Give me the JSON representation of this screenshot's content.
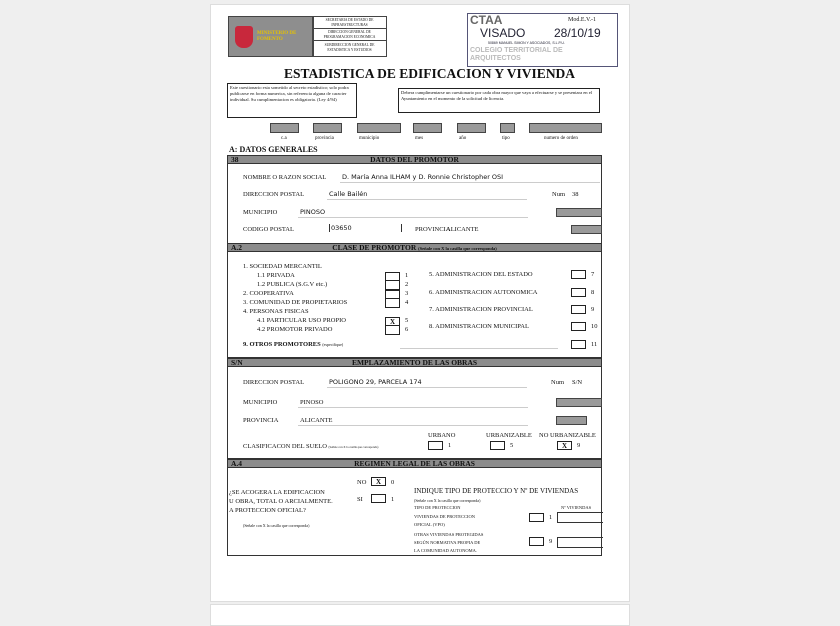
{
  "header": {
    "logo_text": "MINISTERIO DE FOMENTO",
    "ministry_lines": [
      "SECRETARIA DE ESTADO DE INFRAESTRUCTURAS",
      "DIRECCION GENERAL DE PROGRAMACION ECONOMICA",
      "SUBDIRECCION GENERAL DE ESTADISTICA Y ESTUDIOS"
    ],
    "stamp": {
      "brand": "CTAA",
      "bg_text": "COLEGIO TERRITORIAL DE ARQUITECTOS",
      "model": "Mod.E.V.-1",
      "visado": "VISADO",
      "date": "28/10/19",
      "firm": "50869 MANUEL SIMON Y ASOCIADOS, S.L.P.U."
    },
    "title": "ESTADISTICA DE EDIFICACION Y VIVIENDA",
    "note_left": "Este cuestionario esta sometido al secreto estadistico; solo podra publicarse en forma numerica, sin referencia alguna de caracter individual. Su cumplimentacion es obligatoria. (Ley 4/94)",
    "note_right": "Debera cumplimentarse un cuestionario por cada obra mayor que vaya a efectuarse y se presentara en el Ayuntamiento en el momento de la solicitud de licencia.",
    "code_labels": [
      "c.a",
      "provincia",
      "municipio",
      "mes",
      "año",
      "tipo",
      "numero de orden"
    ]
  },
  "section_a": {
    "title": "A: DATOS GENERALES",
    "a1": {
      "num": "38",
      "title": "DATOS DEL PROMOTOR",
      "name_label": "NOMBRE O RAZON SOCIAL",
      "name": "D. María Anna ILHAM y D. Ronnie Christopher OSI",
      "address_label": "DIRECCION POSTAL",
      "address": "Calle Bailén",
      "num_label": "Num",
      "municipio_label": "MUNICIPIO",
      "municipio": "PINOSO",
      "cp_label": "CODIGO POSTAL",
      "cp": "03650",
      "provincia_label": "PROVINCIA",
      "provincia": "ALICANTE"
    },
    "a2": {
      "num": "A.2",
      "title": "CLASE DE PROMOTOR",
      "hint": "(Señale con X la casilla que corresponda)",
      "left": [
        {
          "t": "1.   SOCIEDAD MERCANTIL"
        },
        {
          "t": "1.1  PRIVADA",
          "code": "1"
        },
        {
          "t": "1.2  PUBLICA (S.G.V etc.)",
          "code": "2"
        },
        {
          "t": "2.   COOPERATIVA",
          "code": "3"
        },
        {
          "t": "3.   COMUNIDAD DE PROPIETARIOS",
          "code": "4"
        },
        {
          "t": "4.   PERSONAS FISICAS"
        },
        {
          "t": "4.1  PARTICULAR USO PROPIO",
          "code": "5",
          "mark": "X"
        },
        {
          "t": "4.2  PROMOTOR PRIVADO",
          "code": "6"
        }
      ],
      "right": [
        {
          "t": "5.   ADMINISTRACION DEL ESTADO",
          "code": "7"
        },
        {
          "t": "6.   ADMINISTRACION AUTONOMICA",
          "code": "8"
        },
        {
          "t": "7.   ADMINISTRACION PROVINCIAL",
          "code": "9"
        },
        {
          "t": "8.   ADMINISTRACION MUNICIPAL",
          "code": "10"
        }
      ],
      "other_label": "9.   OTROS PROMOTORES",
      "other_hint": "(especifique)",
      "other_code": "11"
    },
    "a3": {
      "num": "S/N",
      "title": "EMPLAZAMIENTO DE LAS OBRAS",
      "address_label": "DIRECCION POSTAL",
      "address": "POLIGONO 29, PARCELA 174",
      "num_label": "Num",
      "municipio_label": "MUNICIPIO",
      "municipio": "PINOSO",
      "provincia_label": "PROVINCIA",
      "provincia": "ALICANTE",
      "suelo_label": "CLASIFICACON DEL SUELO",
      "suelo_hint": "(Señale con X la casilla que corresponda)",
      "suelo": [
        {
          "t": "URBANO",
          "code": "1",
          "mark": ""
        },
        {
          "t": "URBANIZABLE",
          "code": "5",
          "mark": ""
        },
        {
          "t": "NO URBANIZABLE",
          "code": "9",
          "mark": "X"
        }
      ]
    },
    "a4": {
      "num": "A.4",
      "title": "REGIMEN LEGAL DE LAS OBRAS",
      "question": [
        "¿SE ACOGERA LA EDIFICACION",
        "U OBRA, TOTAL O ARCIALMENTE.",
        "A PROTECCION OFICIAL?"
      ],
      "hint": "(Señale con X la casilla que corresponda)",
      "no_label": "NO",
      "no_mark": "X",
      "no_code": "0",
      "si_label": "SI",
      "si_code": "1",
      "tipo_title": "INDIQUE TIPO DE PROTECCIO Y Nº DE VIVIENDAS",
      "tipo_hint": "(Señale con X la casilla que corresponda)",
      "tipo_label": "TIPO DE PROTECCION",
      "nviv_label": "Nº VIVIENDAS",
      "opt1": [
        "VIVIENDAS DE PROTECCION",
        "OFICIAL (VPO)"
      ],
      "opt1_code": "1",
      "opt2": [
        "OTRAS VIVIENDAS PROTEGIDAS",
        "SEGÚN NORMATIVA PROPIA DE",
        "LA COMUNIDAD AUTONOMA."
      ],
      "opt2_code": "9"
    }
  }
}
